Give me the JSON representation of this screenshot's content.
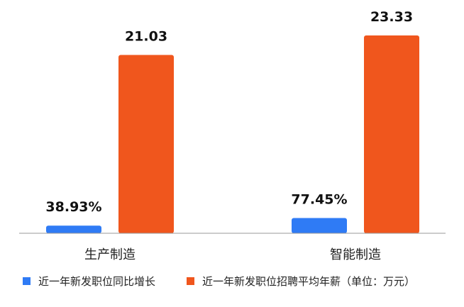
{
  "chart_data": {
    "type": "bar",
    "categories": [
      "生产制造",
      "智能制造"
    ],
    "ylim": [
      0,
      25
    ],
    "grid": false,
    "legend_position": "bottom",
    "series": [
      {
        "name": "近一年新发职位同比增长",
        "color": "#2f7bf5",
        "values": [
          38.93,
          77.45
        ],
        "value_labels": [
          "38.93%",
          "77.45%"
        ],
        "display_values": [
          0.9,
          1.8
        ]
      },
      {
        "name": "近一年新发职位招聘平均年薪（单位：万元）",
        "color": "#f0561d",
        "values": [
          21.03,
          23.33
        ],
        "value_labels": [
          "21.03",
          "23.33"
        ]
      }
    ]
  }
}
